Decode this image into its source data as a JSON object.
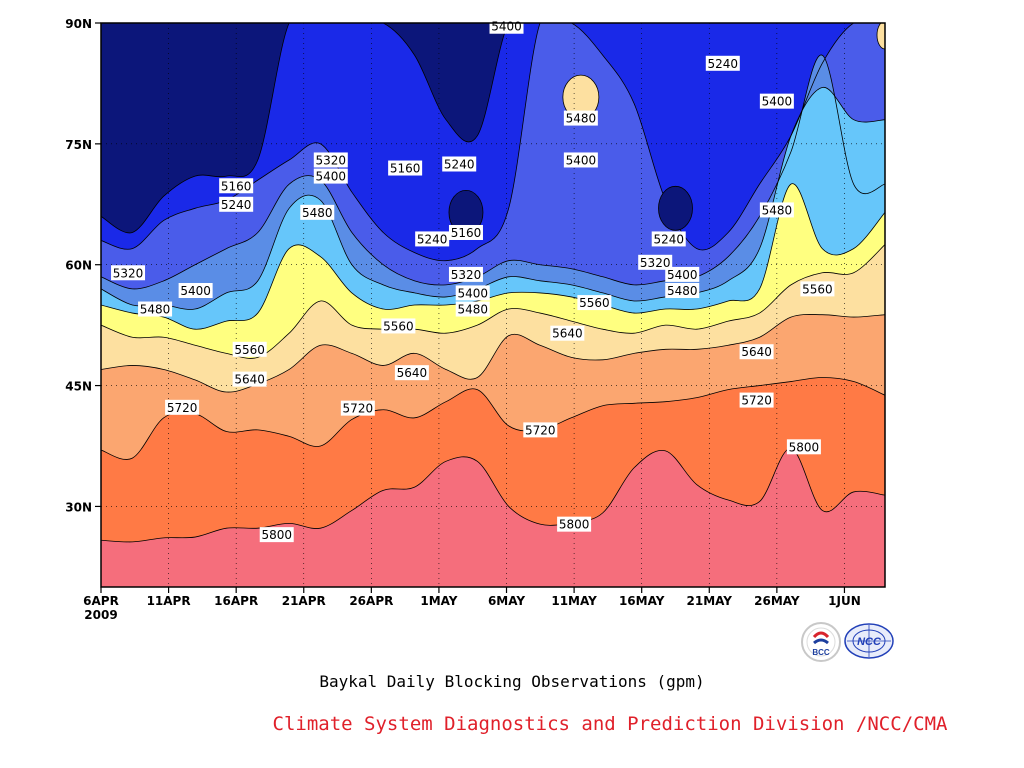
{
  "chart_data": {
    "type": "contour",
    "title": "Baykal Daily Blocking Observations (gpm)",
    "credit": "Climate System Diagnostics and Prediction Division /NCC/CMA",
    "x_ticks": [
      "6APR",
      "11APR",
      "16APR",
      "21APR",
      "26APR",
      "1MAY",
      "6MAY",
      "11MAY",
      "16MAY",
      "21MAY",
      "26MAY",
      "1JUN"
    ],
    "x_year_label": "2009",
    "x_range_days": [
      0,
      58
    ],
    "y_ticks": [
      "30N",
      "45N",
      "60N",
      "75N",
      "90N"
    ],
    "y_tick_values": [
      30,
      45,
      60,
      75,
      90
    ],
    "ylim": [
      20,
      90
    ],
    "grid": "dotted",
    "levels": [
      5160,
      5240,
      5320,
      5400,
      5480,
      5560,
      5640,
      5720,
      5800
    ],
    "fill_colors": [
      "#0c167a",
      "#1a29e8",
      "#4a5cea",
      "#5a8de6",
      "#66c6fa",
      "#ffff80",
      "#fde0a0",
      "#fba670",
      "#ff7a45",
      "#f56e7c"
    ],
    "contours": [
      {
        "level": 5800,
        "lat": [
          25.8,
          25.6,
          26.1,
          26.2,
          27.3,
          27.3,
          27.9,
          27.3,
          29.5,
          32.0,
          32.4,
          35.6,
          35.6,
          30.0,
          27.8,
          28.0,
          29.2,
          34.8,
          36.9,
          32.7,
          30.8,
          30.6,
          37.2,
          29.5,
          31.8,
          31.4
        ]
      },
      {
        "level": 5720,
        "lat": [
          37.0,
          36.0,
          41.0,
          41.5,
          39.3,
          39.5,
          38.7,
          37.5,
          40.8,
          42.0,
          41.0,
          43.0,
          44.5,
          40.0,
          39.5,
          41.0,
          42.5,
          42.8,
          43.0,
          43.5,
          44.5,
          45.0,
          45.5,
          46.0,
          45.5,
          43.8
        ]
      },
      {
        "level": 5640,
        "lat": [
          47.0,
          47.5,
          47.0,
          45.7,
          44.2,
          45.2,
          47.0,
          50.0,
          49.0,
          47.5,
          49.0,
          47.0,
          46.0,
          51.2,
          50.0,
          48.5,
          48.2,
          49.0,
          49.5,
          49.5,
          50.0,
          51.0,
          53.5,
          53.8,
          53.5,
          53.8
        ]
      },
      {
        "level": 5560,
        "lat": [
          52.5,
          51.0,
          51.0,
          50.0,
          49.0,
          48.5,
          51.5,
          55.5,
          52.5,
          52.0,
          52.0,
          51.5,
          52.5,
          54.5,
          54.0,
          53.0,
          52.0,
          51.5,
          52.5,
          52.0,
          53.0,
          54.0,
          57.5,
          59.0,
          59.0,
          62.5
        ]
      },
      {
        "level": 5480,
        "lat": [
          55.0,
          54.0,
          53.5,
          52.0,
          53.0,
          54.0,
          62.0,
          61.0,
          56.5,
          54.5,
          55.0,
          55.0,
          55.5,
          56.5,
          56.5,
          56.0,
          55.0,
          54.0,
          54.5,
          54.5,
          55.5,
          57.0,
          70.0,
          62.0,
          62.0,
          66.5
        ]
      },
      {
        "level": 5400,
        "lat": [
          57.0,
          55.0,
          55.0,
          54.5,
          56.5,
          58.0,
          67.0,
          68.0,
          60.0,
          57.5,
          56.5,
          56.0,
          57.0,
          58.5,
          58.0,
          57.5,
          56.5,
          55.5,
          56.0,
          56.5,
          58.0,
          62.0,
          76.0,
          82.0,
          78.0,
          78.0
        ]
      },
      {
        "level": 5320,
        "lat": [
          58.5,
          57.0,
          58.0,
          60.0,
          62.0,
          64.0,
          70.0,
          70.5,
          64.0,
          60.0,
          58.0,
          57.5,
          58.5,
          60.5,
          60.0,
          59.5,
          58.5,
          57.5,
          58.0,
          58.5,
          61.0,
          66.0,
          74.0,
          86.0,
          70.0,
          70.0
        ]
      },
      {
        "level": 5240,
        "lat": [
          63.0,
          62.0,
          65.5,
          67.0,
          68.0,
          70.5,
          73.0,
          75.0,
          69.0,
          64.0,
          61.5,
          60.5,
          62.0,
          67.0,
          90.0,
          90.0,
          86.0,
          80.0,
          68.0,
          62.0,
          64.0,
          70.0,
          76.0,
          85.0,
          90.0,
          90.0
        ]
      },
      {
        "level": 5160,
        "lat": [
          66.0,
          64.0,
          68.5,
          71.0,
          71.0,
          73.0,
          90.0,
          90.0,
          90.0,
          90.0,
          86.0,
          78.0,
          76.0,
          90.0,
          90.0,
          90.0,
          90.0,
          90.0,
          90.0,
          90.0,
          90.0,
          90.0,
          90.0,
          90.0,
          90.0,
          90.0
        ]
      }
    ],
    "labels": [
      {
        "text": "5320",
        "day": 2,
        "lat": 59.0
      },
      {
        "text": "5400",
        "day": 7,
        "lat": 56.8
      },
      {
        "text": "5480",
        "day": 4,
        "lat": 54.5
      },
      {
        "text": "5160",
        "day": 10,
        "lat": 69.8
      },
      {
        "text": "5240",
        "day": 10,
        "lat": 67.5
      },
      {
        "text": "5320",
        "day": 17,
        "lat": 73.0
      },
      {
        "text": "5400",
        "day": 17,
        "lat": 71.0
      },
      {
        "text": "5480",
        "day": 16,
        "lat": 66.5
      },
      {
        "text": "5160",
        "day": 22.5,
        "lat": 72.0
      },
      {
        "text": "5240",
        "day": 26.5,
        "lat": 72.5
      },
      {
        "text": "5240",
        "day": 24.5,
        "lat": 63.2
      },
      {
        "text": "5160",
        "day": 27,
        "lat": 64.0
      },
      {
        "text": "5320",
        "day": 27,
        "lat": 58.8
      },
      {
        "text": "5400",
        "day": 27.5,
        "lat": 56.5
      },
      {
        "text": "5480",
        "day": 27.5,
        "lat": 54.5
      },
      {
        "text": "5400",
        "day": 30,
        "lat": 89.6
      },
      {
        "text": "5480",
        "day": 35.5,
        "lat": 78.2
      },
      {
        "text": "5400",
        "day": 35.5,
        "lat": 73.0
      },
      {
        "text": "5560",
        "day": 36.5,
        "lat": 55.3
      },
      {
        "text": "5640",
        "day": 34.5,
        "lat": 51.5
      },
      {
        "text": "5240",
        "day": 46,
        "lat": 85.0
      },
      {
        "text": "5400",
        "day": 50,
        "lat": 80.3
      },
      {
        "text": "5480",
        "day": 50,
        "lat": 66.8
      },
      {
        "text": "5560",
        "day": 53,
        "lat": 57.0
      },
      {
        "text": "5240",
        "day": 42,
        "lat": 63.2
      },
      {
        "text": "5320",
        "day": 41,
        "lat": 60.3
      },
      {
        "text": "5400",
        "day": 43,
        "lat": 58.8
      },
      {
        "text": "5480",
        "day": 43,
        "lat": 56.8
      },
      {
        "text": "5560",
        "day": 22,
        "lat": 52.4
      },
      {
        "text": "5560",
        "day": 11,
        "lat": 49.5
      },
      {
        "text": "5640",
        "day": 11,
        "lat": 45.8
      },
      {
        "text": "5640",
        "day": 23,
        "lat": 46.6
      },
      {
        "text": "5640",
        "day": 48.5,
        "lat": 49.2
      },
      {
        "text": "5720",
        "day": 6,
        "lat": 42.3
      },
      {
        "text": "5720",
        "day": 19,
        "lat": 42.2
      },
      {
        "text": "5720",
        "day": 32.5,
        "lat": 39.5
      },
      {
        "text": "5720",
        "day": 48.5,
        "lat": 43.2
      },
      {
        "text": "5800",
        "day": 52,
        "lat": 37.4
      },
      {
        "text": "5800",
        "day": 13,
        "lat": 26.5
      },
      {
        "text": "5800",
        "day": 35,
        "lat": 27.8
      }
    ],
    "low_cells": [
      {
        "level": 5160,
        "day": 27,
        "lat": 66.5
      },
      {
        "level": 5160,
        "day": 42.5,
        "lat": 67.0
      }
    ],
    "high_cells": [
      {
        "level": 5560,
        "day": 35.5,
        "lat": 80.8
      },
      {
        "level": 5560,
        "day": 58,
        "lat": 88.5
      }
    ]
  },
  "logos": {
    "left": {
      "text": "BCC",
      "color": "#1d3f9e",
      "accent": "#d8242c"
    },
    "right": {
      "text": "NCC",
      "color": "#2240b8"
    }
  }
}
